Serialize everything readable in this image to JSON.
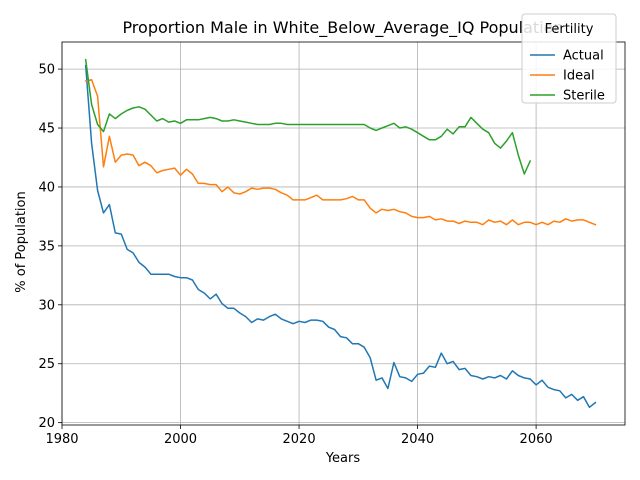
{
  "chart_data": {
    "type": "line",
    "title": "Proportion Male in White_Below_Average_IQ Population",
    "xlabel": "Years",
    "ylabel": "% of Population",
    "xlim": [
      1980,
      2075
    ],
    "ylim": [
      19.8,
      52.3
    ],
    "x_ticks": [
      1980,
      2000,
      2020,
      2040,
      2060
    ],
    "y_ticks": [
      20,
      25,
      30,
      35,
      40,
      45,
      50
    ],
    "grid": true,
    "legend": {
      "title": "Fertility",
      "placement": "top-right"
    },
    "series": [
      {
        "name": "Actual",
        "color": "#1f77b4",
        "x": [
          1984,
          1985,
          1986,
          1987,
          1988,
          1989,
          1990,
          1991,
          1992,
          1993,
          1994,
          1995,
          1996,
          1997,
          1998,
          1999,
          2000,
          2001,
          2002,
          2003,
          2004,
          2005,
          2006,
          2007,
          2008,
          2009,
          2010,
          2011,
          2012,
          2013,
          2014,
          2015,
          2016,
          2017,
          2018,
          2019,
          2020,
          2021,
          2022,
          2023,
          2024,
          2025,
          2026,
          2027,
          2028,
          2029,
          2030,
          2031,
          2032,
          2033,
          2034,
          2035,
          2036,
          2037,
          2038,
          2039,
          2040,
          2041,
          2042,
          2043,
          2044,
          2045,
          2046,
          2047,
          2048,
          2049,
          2050,
          2051,
          2052,
          2053,
          2054,
          2055,
          2056,
          2057,
          2058,
          2059,
          2060,
          2061,
          2062,
          2063,
          2064,
          2065,
          2066,
          2067,
          2068,
          2069,
          2070
        ],
        "values": [
          50.3,
          43.7,
          39.7,
          37.8,
          38.5,
          36.1,
          36.0,
          34.7,
          34.4,
          33.6,
          33.2,
          32.6,
          32.6,
          32.6,
          32.6,
          32.4,
          32.3,
          32.3,
          32.1,
          31.3,
          31.0,
          30.5,
          30.9,
          30.1,
          29.7,
          29.7,
          29.3,
          29.0,
          28.5,
          28.8,
          28.7,
          29.0,
          29.2,
          28.8,
          28.6,
          28.4,
          28.6,
          28.5,
          28.7,
          28.7,
          28.6,
          28.1,
          27.9,
          27.3,
          27.2,
          26.7,
          26.7,
          26.4,
          25.5,
          23.6,
          23.8,
          22.9,
          25.1,
          23.9,
          23.8,
          23.5,
          24.1,
          24.2,
          24.8,
          24.7,
          25.9,
          25.0,
          25.2,
          24.5,
          24.6,
          24.0,
          23.9,
          23.7,
          23.9,
          23.8,
          24.0,
          23.7,
          24.4,
          24.0,
          23.8,
          23.7,
          23.2,
          23.6,
          23.0,
          22.8,
          22.7,
          22.1,
          22.4,
          21.9,
          22.2,
          21.3,
          21.7
        ]
      },
      {
        "name": "Ideal",
        "color": "#ff7f0e",
        "x": [
          1984,
          1985,
          1986,
          1987,
          1988,
          1989,
          1990,
          1991,
          1992,
          1993,
          1994,
          1995,
          1996,
          1997,
          1998,
          1999,
          2000,
          2001,
          2002,
          2003,
          2004,
          2005,
          2006,
          2007,
          2008,
          2009,
          2010,
          2011,
          2012,
          2013,
          2014,
          2015,
          2016,
          2017,
          2018,
          2019,
          2020,
          2021,
          2022,
          2023,
          2024,
          2025,
          2026,
          2027,
          2028,
          2029,
          2030,
          2031,
          2032,
          2033,
          2034,
          2035,
          2036,
          2037,
          2038,
          2039,
          2040,
          2041,
          2042,
          2043,
          2044,
          2045,
          2046,
          2047,
          2048,
          2049,
          2050,
          2051,
          2052,
          2053,
          2054,
          2055,
          2056,
          2057,
          2058,
          2059,
          2060,
          2061,
          2062,
          2063,
          2064,
          2065,
          2066,
          2067,
          2068,
          2069,
          2070
        ],
        "values": [
          49.0,
          49.1,
          47.7,
          41.7,
          44.3,
          42.1,
          42.7,
          42.8,
          42.7,
          41.8,
          42.1,
          41.8,
          41.2,
          41.4,
          41.5,
          41.6,
          41.0,
          41.5,
          41.1,
          40.3,
          40.3,
          40.2,
          40.2,
          39.6,
          40.0,
          39.5,
          39.4,
          39.6,
          39.9,
          39.8,
          39.9,
          39.9,
          39.8,
          39.5,
          39.3,
          38.9,
          38.9,
          38.9,
          39.1,
          39.3,
          38.9,
          38.9,
          38.9,
          38.9,
          39.0,
          39.2,
          38.9,
          38.9,
          38.2,
          37.8,
          38.1,
          38.0,
          38.1,
          37.9,
          37.8,
          37.5,
          37.4,
          37.4,
          37.5,
          37.2,
          37.3,
          37.1,
          37.1,
          36.9,
          37.1,
          37.0,
          37.0,
          36.8,
          37.2,
          37.0,
          37.1,
          36.8,
          37.2,
          36.8,
          37.0,
          37.0,
          36.8,
          37.0,
          36.8,
          37.1,
          37.0,
          37.3,
          37.1,
          37.2,
          37.2,
          37.0,
          36.8
        ]
      },
      {
        "name": "Sterile",
        "color": "#2ca02c",
        "x": [
          1984,
          1985,
          1986,
          1987,
          1988,
          1989,
          1990,
          1991,
          1992,
          1993,
          1994,
          1995,
          1996,
          1997,
          1998,
          1999,
          2000,
          2001,
          2002,
          2003,
          2004,
          2005,
          2006,
          2007,
          2008,
          2009,
          2010,
          2011,
          2012,
          2013,
          2014,
          2015,
          2016,
          2017,
          2018,
          2019,
          2020,
          2021,
          2022,
          2023,
          2024,
          2025,
          2026,
          2027,
          2028,
          2029,
          2030,
          2031,
          2032,
          2033,
          2034,
          2035,
          2036,
          2037,
          2038,
          2039,
          2040,
          2041,
          2042,
          2043,
          2044,
          2045,
          2046,
          2047,
          2048,
          2049,
          2050,
          2051,
          2052,
          2053,
          2054,
          2055,
          2056,
          2057,
          2058,
          2059
        ],
        "values": [
          50.8,
          47.0,
          45.3,
          44.7,
          46.2,
          45.8,
          46.2,
          46.5,
          46.7,
          46.8,
          46.6,
          46.1,
          45.6,
          45.8,
          45.5,
          45.6,
          45.4,
          45.7,
          45.7,
          45.7,
          45.8,
          45.9,
          45.8,
          45.6,
          45.6,
          45.7,
          45.6,
          45.5,
          45.4,
          45.3,
          45.3,
          45.3,
          45.4,
          45.4,
          45.3,
          45.3,
          45.3,
          45.3,
          45.3,
          45.3,
          45.3,
          45.3,
          45.3,
          45.3,
          45.3,
          45.3,
          45.3,
          45.3,
          45.0,
          44.8,
          45.0,
          45.2,
          45.4,
          45.0,
          45.1,
          44.9,
          44.6,
          44.3,
          44.0,
          44.0,
          44.3,
          44.9,
          44.5,
          45.1,
          45.1,
          45.9,
          45.4,
          44.9,
          44.6,
          43.7,
          43.3,
          43.9,
          44.6,
          42.7,
          41.1,
          42.2
        ]
      }
    ]
  }
}
